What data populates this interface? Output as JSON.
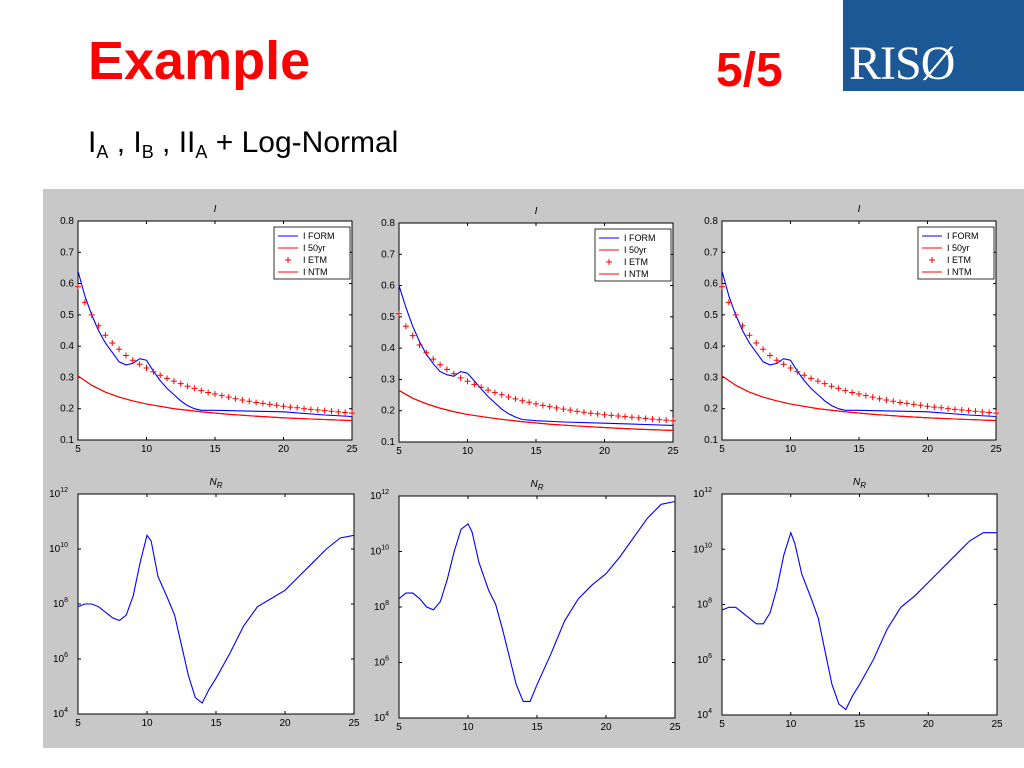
{
  "slide": {
    "title": "Example",
    "page": "5/5",
    "logo_text": "RISØ",
    "subtitle": {
      "parts": [
        {
          "text": "I",
          "sub": "A"
        },
        {
          "text": " , I",
          "sub": "B"
        },
        {
          "text": " , II",
          "sub": "A"
        },
        {
          "text": " + Log-Normal",
          "sub": ""
        }
      ]
    }
  },
  "colors": {
    "accent_red": "#ff0000",
    "logo_blue": "#1d5896",
    "figure_bg": "#c8c8c8",
    "series_blue": "#0000ff"
  },
  "chart_data": [
    {
      "type": "line",
      "title": "I",
      "xlim": [
        5,
        25
      ],
      "ylim": [
        0.1,
        0.8
      ],
      "xticks": [
        5,
        10,
        15,
        20,
        25
      ],
      "yticks": [
        0.1,
        0.2,
        0.3,
        0.4,
        0.5,
        0.6,
        0.7,
        0.8
      ],
      "legend": {
        "placement": "top-right"
      },
      "series": [
        {
          "name": "I FORM",
          "color": "#0000ff",
          "style": "line",
          "x": [
            5,
            5.5,
            6,
            6.5,
            7,
            7.5,
            8,
            8.5,
            9,
            9.5,
            10,
            10.5,
            11,
            11.5,
            12,
            12.5,
            13,
            13.5,
            14,
            15,
            17,
            20,
            23,
            25
          ],
          "y": [
            0.64,
            0.56,
            0.5,
            0.45,
            0.41,
            0.38,
            0.35,
            0.34,
            0.345,
            0.36,
            0.355,
            0.32,
            0.29,
            0.265,
            0.245,
            0.225,
            0.21,
            0.2,
            0.195,
            0.195,
            0.193,
            0.19,
            0.18,
            0.175
          ]
        },
        {
          "name": "I 50yr",
          "color": "#ff0000",
          "style": "line",
          "x": [
            5,
            6,
            7,
            8,
            9,
            10,
            12,
            14,
            16,
            18,
            20,
            22,
            25
          ],
          "y": [
            0.305,
            0.275,
            0.253,
            0.237,
            0.225,
            0.215,
            0.2,
            0.19,
            0.182,
            0.176,
            0.171,
            0.167,
            0.162
          ]
        },
        {
          "name": "I ETM",
          "color": "#ff0000",
          "style": "marker",
          "x": [
            5,
            5.5,
            6,
            6.5,
            7,
            7.5,
            8,
            8.5,
            9,
            9.5,
            10,
            10.5,
            11,
            11.5,
            12,
            12.5,
            13,
            13.5,
            14,
            14.5,
            15,
            15.5,
            16,
            16.5,
            17,
            17.5,
            18,
            18.5,
            19,
            19.5,
            20,
            20.5,
            21,
            21.5,
            22,
            22.5,
            23,
            23.5,
            24,
            24.5,
            25
          ],
          "y": [
            0.59,
            0.54,
            0.5,
            0.465,
            0.435,
            0.41,
            0.39,
            0.37,
            0.355,
            0.342,
            0.33,
            0.318,
            0.307,
            0.297,
            0.288,
            0.28,
            0.272,
            0.265,
            0.258,
            0.252,
            0.247,
            0.242,
            0.237,
            0.232,
            0.228,
            0.224,
            0.22,
            0.217,
            0.214,
            0.211,
            0.208,
            0.205,
            0.203,
            0.2,
            0.198,
            0.196,
            0.194,
            0.192,
            0.19,
            0.188,
            0.186
          ]
        },
        {
          "name": "I NTM",
          "color": "#ff0000",
          "style": "line",
          "x": [
            5,
            6,
            7,
            8,
            9,
            10,
            12,
            14,
            16,
            18,
            20,
            22,
            25
          ],
          "y": [
            0.305,
            0.275,
            0.253,
            0.237,
            0.225,
            0.215,
            0.2,
            0.19,
            0.182,
            0.176,
            0.171,
            0.167,
            0.162
          ]
        }
      ]
    },
    {
      "type": "line",
      "title": "I",
      "xlim": [
        5,
        25
      ],
      "ylim": [
        0.1,
        0.8
      ],
      "xticks": [
        5,
        10,
        15,
        20,
        25
      ],
      "yticks": [
        0.1,
        0.2,
        0.3,
        0.4,
        0.5,
        0.6,
        0.7,
        0.8
      ],
      "legend": {
        "placement": "top-right"
      },
      "series": [
        {
          "name": "I FORM",
          "color": "#0000ff",
          "style": "line",
          "x": [
            5,
            5.5,
            6,
            6.5,
            7,
            7.5,
            8,
            8.5,
            9,
            9.5,
            10,
            10.5,
            11,
            11.5,
            12,
            12.5,
            13,
            13.5,
            14,
            15,
            17,
            20,
            23,
            25
          ],
          "y": [
            0.6,
            0.53,
            0.47,
            0.42,
            0.38,
            0.35,
            0.325,
            0.315,
            0.31,
            0.325,
            0.32,
            0.295,
            0.27,
            0.245,
            0.225,
            0.205,
            0.19,
            0.18,
            0.172,
            0.168,
            0.164,
            0.16,
            0.156,
            0.153
          ]
        },
        {
          "name": "I 50yr",
          "color": "#ff0000",
          "style": "line",
          "x": [
            5,
            6,
            7,
            8,
            9,
            10,
            12,
            14,
            16,
            18,
            20,
            22,
            25
          ],
          "y": [
            0.265,
            0.24,
            0.222,
            0.208,
            0.197,
            0.188,
            0.175,
            0.165,
            0.157,
            0.151,
            0.146,
            0.142,
            0.137
          ]
        },
        {
          "name": "I ETM",
          "color": "#ff0000",
          "style": "marker",
          "x": [
            5,
            5.5,
            6,
            6.5,
            7,
            7.5,
            8,
            8.5,
            9,
            9.5,
            10,
            10.5,
            11,
            11.5,
            12,
            12.5,
            13,
            13.5,
            14,
            14.5,
            15,
            15.5,
            16,
            16.5,
            17,
            17.5,
            18,
            18.5,
            19,
            19.5,
            20,
            20.5,
            21,
            21.5,
            22,
            22.5,
            23,
            23.5,
            24,
            24.5,
            25
          ],
          "y": [
            0.51,
            0.47,
            0.44,
            0.41,
            0.385,
            0.365,
            0.347,
            0.332,
            0.318,
            0.305,
            0.294,
            0.284,
            0.275,
            0.266,
            0.258,
            0.251,
            0.244,
            0.238,
            0.232,
            0.227,
            0.222,
            0.217,
            0.213,
            0.209,
            0.205,
            0.202,
            0.198,
            0.195,
            0.192,
            0.19,
            0.187,
            0.185,
            0.183,
            0.181,
            0.179,
            0.177,
            0.175,
            0.173,
            0.171,
            0.17,
            0.168
          ]
        },
        {
          "name": "I NTM",
          "color": "#ff0000",
          "style": "line",
          "x": [
            5,
            6,
            7,
            8,
            9,
            10,
            12,
            14,
            16,
            18,
            20,
            22,
            25
          ],
          "y": [
            0.265,
            0.24,
            0.222,
            0.208,
            0.197,
            0.188,
            0.175,
            0.165,
            0.157,
            0.151,
            0.146,
            0.142,
            0.137
          ]
        }
      ]
    },
    {
      "type": "line",
      "title": "I",
      "xlim": [
        5,
        25
      ],
      "ylim": [
        0.1,
        0.8
      ],
      "xticks": [
        5,
        10,
        15,
        20,
        25
      ],
      "yticks": [
        0.1,
        0.2,
        0.3,
        0.4,
        0.5,
        0.6,
        0.7,
        0.8
      ],
      "legend": {
        "placement": "top-right"
      },
      "series": [
        {
          "name": "I FORM",
          "color": "#0000ff",
          "style": "line",
          "x": [
            5,
            5.5,
            6,
            6.5,
            7,
            7.5,
            8,
            8.5,
            9,
            9.5,
            10,
            10.5,
            11,
            11.5,
            12,
            12.5,
            13,
            13.5,
            14,
            15,
            17,
            20,
            23,
            25
          ],
          "y": [
            0.64,
            0.56,
            0.5,
            0.45,
            0.41,
            0.38,
            0.35,
            0.34,
            0.345,
            0.36,
            0.355,
            0.32,
            0.29,
            0.265,
            0.245,
            0.225,
            0.21,
            0.2,
            0.195,
            0.195,
            0.193,
            0.19,
            0.18,
            0.175
          ]
        },
        {
          "name": "I 50yr",
          "color": "#ff0000",
          "style": "line",
          "x": [
            5,
            6,
            7,
            8,
            9,
            10,
            12,
            14,
            16,
            18,
            20,
            22,
            25
          ],
          "y": [
            0.305,
            0.275,
            0.253,
            0.237,
            0.225,
            0.215,
            0.2,
            0.19,
            0.182,
            0.176,
            0.171,
            0.167,
            0.162
          ]
        },
        {
          "name": "I ETM",
          "color": "#ff0000",
          "style": "marker",
          "x": [
            5,
            5.5,
            6,
            6.5,
            7,
            7.5,
            8,
            8.5,
            9,
            9.5,
            10,
            10.5,
            11,
            11.5,
            12,
            12.5,
            13,
            13.5,
            14,
            14.5,
            15,
            15.5,
            16,
            16.5,
            17,
            17.5,
            18,
            18.5,
            19,
            19.5,
            20,
            20.5,
            21,
            21.5,
            22,
            22.5,
            23,
            23.5,
            24,
            24.5,
            25
          ],
          "y": [
            0.59,
            0.54,
            0.5,
            0.465,
            0.435,
            0.41,
            0.39,
            0.37,
            0.355,
            0.342,
            0.33,
            0.318,
            0.307,
            0.297,
            0.288,
            0.28,
            0.272,
            0.265,
            0.258,
            0.252,
            0.247,
            0.242,
            0.237,
            0.232,
            0.228,
            0.224,
            0.22,
            0.217,
            0.214,
            0.211,
            0.208,
            0.205,
            0.203,
            0.2,
            0.198,
            0.196,
            0.194,
            0.192,
            0.19,
            0.188,
            0.186
          ]
        },
        {
          "name": "I NTM",
          "color": "#ff0000",
          "style": "line",
          "x": [
            5,
            6,
            7,
            8,
            9,
            10,
            12,
            14,
            16,
            18,
            20,
            22,
            25
          ],
          "y": [
            0.305,
            0.275,
            0.253,
            0.237,
            0.225,
            0.215,
            0.2,
            0.19,
            0.182,
            0.176,
            0.171,
            0.167,
            0.162
          ]
        }
      ]
    },
    {
      "type": "line",
      "title": "N",
      "title_sub": "R",
      "y_scale": "log",
      "xlim": [
        5,
        25
      ],
      "ylim_exp": [
        4,
        12
      ],
      "xticks": [
        5,
        10,
        15,
        20,
        25
      ],
      "yticks_exp": [
        4,
        6,
        8,
        10,
        12
      ],
      "tick_base": "10",
      "series": [
        {
          "name": "",
          "color": "#0000ff",
          "style": "line",
          "x": [
            5,
            5.5,
            6,
            6.5,
            7,
            7.5,
            8,
            8.5,
            9,
            9.5,
            10,
            10.3,
            10.8,
            11.5,
            12,
            12.5,
            13,
            13.5,
            14,
            14.5,
            15,
            16,
            17,
            18,
            19,
            20,
            21,
            22,
            23,
            24,
            25
          ],
          "y_exp": [
            7.9,
            8.0,
            8.0,
            7.9,
            7.7,
            7.5,
            7.4,
            7.6,
            8.3,
            9.5,
            10.5,
            10.3,
            9.0,
            8.2,
            7.6,
            6.5,
            5.4,
            4.6,
            4.4,
            4.9,
            5.3,
            6.2,
            7.2,
            7.9,
            8.2,
            8.5,
            9.0,
            9.5,
            10.0,
            10.4,
            10.5
          ]
        }
      ]
    },
    {
      "type": "line",
      "title": "N",
      "title_sub": "R",
      "y_scale": "log",
      "xlim": [
        5,
        25
      ],
      "ylim_exp": [
        4,
        12
      ],
      "xticks": [
        5,
        10,
        15,
        20,
        25
      ],
      "yticks_exp": [
        4,
        6,
        8,
        10,
        12
      ],
      "tick_base": "10",
      "series": [
        {
          "name": "",
          "color": "#0000ff",
          "style": "line",
          "x": [
            5,
            5.5,
            6,
            6.5,
            7,
            7.5,
            8,
            8.5,
            9,
            9.5,
            10,
            10.3,
            10.8,
            11.5,
            12,
            12.5,
            13,
            13.5,
            14,
            14.5,
            15,
            16,
            17,
            18,
            19,
            20,
            21,
            22,
            23,
            24,
            25
          ],
          "y_exp": [
            8.3,
            8.5,
            8.5,
            8.3,
            8.0,
            7.9,
            8.2,
            9.0,
            10.0,
            10.8,
            11.0,
            10.7,
            9.6,
            8.6,
            8.1,
            7.2,
            6.2,
            5.2,
            4.6,
            4.6,
            5.2,
            6.3,
            7.5,
            8.3,
            8.8,
            9.2,
            9.8,
            10.5,
            11.2,
            11.7,
            11.8
          ]
        }
      ]
    },
    {
      "type": "line",
      "title": "N",
      "title_sub": "R",
      "y_scale": "log",
      "xlim": [
        5,
        25
      ],
      "ylim_exp": [
        4,
        12
      ],
      "xticks": [
        5,
        10,
        15,
        20,
        25
      ],
      "yticks_exp": [
        4,
        6,
        8,
        10,
        12
      ],
      "tick_base": "10",
      "series": [
        {
          "name": "",
          "color": "#0000ff",
          "style": "line",
          "x": [
            5,
            5.5,
            6,
            6.5,
            7,
            7.5,
            8,
            8.5,
            9,
            9.5,
            10,
            10.3,
            10.8,
            11.5,
            12,
            12.5,
            13,
            13.5,
            14,
            14.5,
            15,
            16,
            17,
            18,
            19,
            20,
            21,
            22,
            23,
            24,
            25
          ],
          "y_exp": [
            7.8,
            7.9,
            7.9,
            7.7,
            7.5,
            7.3,
            7.3,
            7.7,
            8.6,
            9.8,
            10.6,
            10.2,
            9.1,
            8.2,
            7.5,
            6.3,
            5.1,
            4.4,
            4.2,
            4.7,
            5.1,
            6.0,
            7.1,
            7.9,
            8.3,
            8.8,
            9.3,
            9.8,
            10.3,
            10.6,
            10.6
          ]
        }
      ]
    }
  ]
}
